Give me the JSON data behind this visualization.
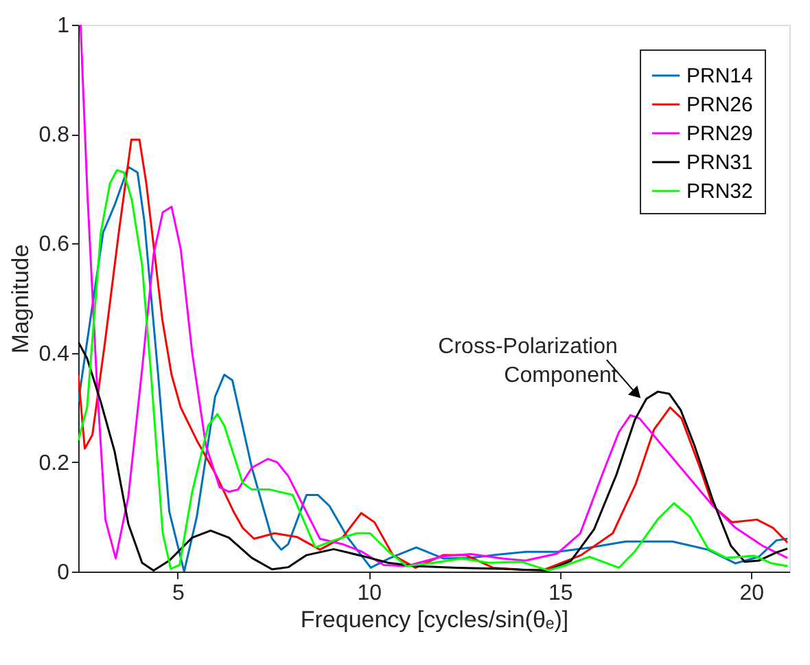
{
  "chart_data": {
    "type": "line",
    "xlabel": "Frequency [cycles/sin(θₑ)]",
    "ylabel": "Magnitude",
    "xlim": [
      2.4,
      21
    ],
    "ylim": [
      0,
      1
    ],
    "xticks": [
      5,
      10,
      15,
      20
    ],
    "yticks": [
      0,
      0.2,
      0.4,
      0.6,
      0.8,
      1
    ],
    "grid": false,
    "legend": "top right",
    "marker": "none",
    "line_style": "solid",
    "annotations": [
      {
        "text": "Cross-Polarization\nComponent",
        "x": 16.97,
        "y": 0.327
      }
    ],
    "series": [
      {
        "name": "PRN14",
        "color": "#0072bd",
        "x": [
          2.4,
          3.05,
          3.35,
          3.71,
          3.95,
          4.13,
          4.49,
          4.78,
          5.17,
          5.5,
          5.98,
          6.22,
          6.43,
          6.94,
          7.47,
          7.71,
          7.89,
          8.37,
          8.67,
          8.97,
          9.44,
          10.05,
          10.53,
          11.24,
          11.95,
          12.67,
          13.38,
          14.1,
          14.93,
          15.79,
          16.72,
          17.94,
          18.87,
          19.59,
          20.2,
          20.66,
          20.95
        ],
        "values": [
          0.31,
          0.62,
          0.67,
          0.74,
          0.73,
          0.64,
          0.36,
          0.11,
          0.0,
          0.1,
          0.32,
          0.36,
          0.35,
          0.19,
          0.06,
          0.04,
          0.05,
          0.14,
          0.14,
          0.12,
          0.063,
          0.007,
          0.024,
          0.044,
          0.024,
          0.025,
          0.031,
          0.036,
          0.036,
          0.044,
          0.055,
          0.055,
          0.04,
          0.015,
          0.027,
          0.057,
          0.06
        ]
      },
      {
        "name": "PRN26",
        "color": "#ff0000",
        "x": [
          2.4,
          2.57,
          2.77,
          3.1,
          3.46,
          3.79,
          4.0,
          4.18,
          4.6,
          4.84,
          5.08,
          5.5,
          5.98,
          6.46,
          6.7,
          7.0,
          7.53,
          8.13,
          8.72,
          9.32,
          9.8,
          10.15,
          10.63,
          11.22,
          11.94,
          12.54,
          13.25,
          14.1,
          14.57,
          15.55,
          16.38,
          16.98,
          17.46,
          17.88,
          18.18,
          18.66,
          19.0,
          19.5,
          20.15,
          20.57,
          20.95
        ],
        "values": [
          0.36,
          0.225,
          0.25,
          0.42,
          0.62,
          0.79,
          0.79,
          0.71,
          0.46,
          0.36,
          0.3,
          0.24,
          0.18,
          0.11,
          0.08,
          0.06,
          0.07,
          0.063,
          0.04,
          0.063,
          0.107,
          0.09,
          0.03,
          0.007,
          0.03,
          0.03,
          0.007,
          0.003,
          0.003,
          0.03,
          0.07,
          0.16,
          0.26,
          0.3,
          0.28,
          0.19,
          0.12,
          0.09,
          0.095,
          0.08,
          0.053
        ]
      },
      {
        "name": "PRN29",
        "color": "#ff00ff",
        "x": [
          2.46,
          2.64,
          2.88,
          3.11,
          3.38,
          3.71,
          4.07,
          4.37,
          4.61,
          4.84,
          5.08,
          5.38,
          5.74,
          6.1,
          6.34,
          6.58,
          6.94,
          7.36,
          7.6,
          7.89,
          8.25,
          8.72,
          9.32,
          9.8,
          10.39,
          10.99,
          11.94,
          12.67,
          13.5,
          14.1,
          14.93,
          15.53,
          16.12,
          16.54,
          16.84,
          17.08,
          17.68,
          18.4,
          19.0,
          19.59,
          20.3,
          20.95
        ],
        "values": [
          1.0,
          0.69,
          0.355,
          0.095,
          0.024,
          0.137,
          0.37,
          0.58,
          0.657,
          0.667,
          0.59,
          0.4,
          0.23,
          0.154,
          0.146,
          0.15,
          0.19,
          0.206,
          0.2,
          0.175,
          0.125,
          0.06,
          0.05,
          0.037,
          0.012,
          0.01,
          0.028,
          0.032,
          0.024,
          0.02,
          0.033,
          0.07,
          0.18,
          0.255,
          0.286,
          0.28,
          0.23,
          0.17,
          0.12,
          0.08,
          0.047,
          0.025
        ]
      },
      {
        "name": "PRN31",
        "color": "#000000",
        "x": [
          2.4,
          2.63,
          2.99,
          3.35,
          3.71,
          4.07,
          4.37,
          4.78,
          5.38,
          5.86,
          6.34,
          6.94,
          7.47,
          7.89,
          8.37,
          9.08,
          9.8,
          10.51,
          11.22,
          12.3,
          13.5,
          14.1,
          14.69,
          15.29,
          15.89,
          16.48,
          16.96,
          17.26,
          17.56,
          17.86,
          18.16,
          18.52,
          19.0,
          19.47,
          19.83,
          20.2,
          20.66,
          20.95
        ],
        "values": [
          0.42,
          0.39,
          0.31,
          0.22,
          0.087,
          0.016,
          0.002,
          0.02,
          0.062,
          0.075,
          0.062,
          0.025,
          0.004,
          0.008,
          0.03,
          0.041,
          0.029,
          0.016,
          0.01,
          0.007,
          0.005,
          0.003,
          0.002,
          0.02,
          0.077,
          0.178,
          0.278,
          0.316,
          0.329,
          0.325,
          0.295,
          0.23,
          0.13,
          0.047,
          0.018,
          0.02,
          0.035,
          0.042
        ]
      },
      {
        "name": "PRN32",
        "color": "#00ff00",
        "x": [
          2.4,
          2.63,
          2.99,
          3.23,
          3.41,
          3.59,
          3.8,
          4.07,
          4.31,
          4.61,
          4.82,
          5.05,
          5.38,
          5.8,
          6.04,
          6.22,
          6.7,
          6.94,
          7.41,
          8.01,
          8.6,
          9.08,
          9.68,
          10.03,
          10.51,
          10.99,
          11.7,
          12.42,
          13.14,
          13.99,
          14.69,
          15.17,
          15.77,
          16.54,
          16.96,
          17.56,
          17.98,
          18.4,
          18.87,
          19.35,
          20.07,
          20.54,
          20.95
        ],
        "values": [
          0.24,
          0.3,
          0.62,
          0.71,
          0.734,
          0.73,
          0.68,
          0.56,
          0.355,
          0.07,
          0.005,
          0.012,
          0.146,
          0.267,
          0.288,
          0.267,
          0.162,
          0.15,
          0.15,
          0.14,
          0.044,
          0.057,
          0.07,
          0.07,
          0.037,
          0.01,
          0.016,
          0.024,
          0.016,
          0.018,
          0.002,
          0.012,
          0.027,
          0.007,
          0.037,
          0.096,
          0.125,
          0.1,
          0.042,
          0.025,
          0.029,
          0.015,
          0.01
        ]
      }
    ]
  }
}
